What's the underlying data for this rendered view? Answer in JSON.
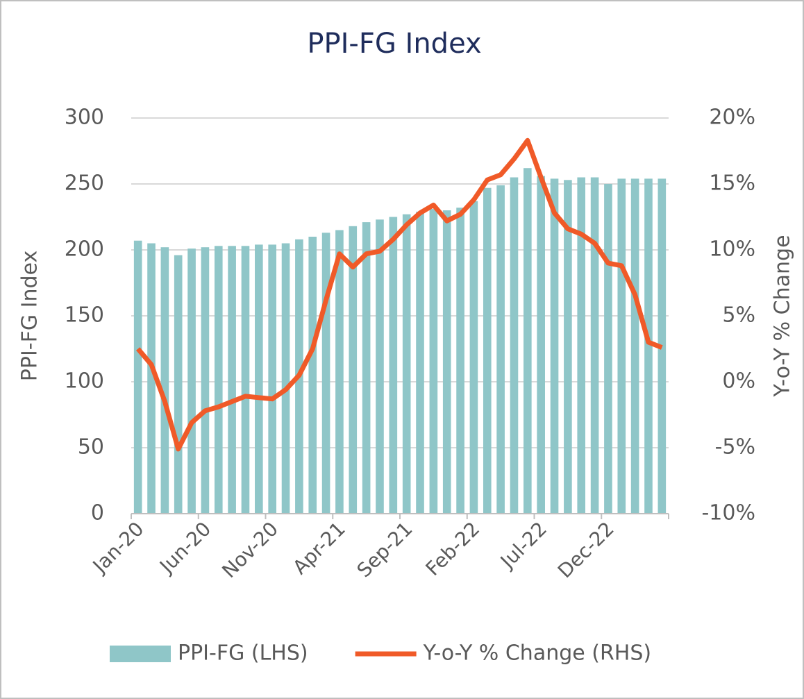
{
  "chart_data": {
    "type": "bar",
    "title": "PPI-FG Index",
    "y_label": "PPI-FG Index",
    "y2_label": "Y-o-Y % Change",
    "categories": [
      "Jan-20",
      null,
      null,
      null,
      null,
      "Jun-20",
      null,
      null,
      null,
      null,
      "Nov-20",
      null,
      null,
      null,
      null,
      "Apr-21",
      null,
      null,
      null,
      null,
      "Sep-21",
      null,
      null,
      null,
      null,
      "Feb-22",
      null,
      null,
      null,
      null,
      "Jul-22",
      null,
      null,
      null,
      null,
      "Dec-22",
      null,
      null,
      null,
      null
    ],
    "series": [
      {
        "name": "PPI-FG (LHS)",
        "type": "bar",
        "color": "#8fc6c8",
        "values": [
          207,
          205,
          202,
          196,
          201,
          202,
          203,
          203,
          203,
          204,
          204,
          205,
          208,
          210,
          213,
          215,
          218,
          221,
          223,
          225,
          227,
          229,
          231,
          230,
          232,
          237,
          247,
          249,
          255,
          262,
          256,
          254,
          253,
          255,
          255,
          250,
          254,
          254,
          254,
          254
        ]
      },
      {
        "name": "Y-o-Y % Change (RHS)",
        "type": "line",
        "axis": "y2",
        "color": "#f05a28",
        "values": [
          2.5,
          1.3,
          -1.5,
          -5.1,
          -3.1,
          -2.2,
          -1.9,
          -1.5,
          -1.1,
          -1.2,
          -1.3,
          -0.6,
          0.5,
          2.5,
          6.2,
          9.7,
          8.7,
          9.7,
          9.9,
          10.8,
          11.9,
          12.8,
          13.4,
          12.2,
          12.7,
          13.8,
          15.3,
          15.7,
          16.9,
          18.3,
          15.5,
          12.8,
          11.6,
          11.2,
          10.5,
          9.0,
          8.8,
          6.6,
          3.0,
          2.6
        ]
      }
    ],
    "ylim": [
      0,
      300
    ],
    "yticks": [
      0,
      50,
      100,
      150,
      200,
      250,
      300
    ],
    "y2lim": [
      -10,
      20
    ],
    "y2ticks": [
      {
        "value": -10,
        "label": "-10%"
      },
      {
        "value": -5,
        "label": "-5%"
      },
      {
        "value": 0,
        "label": "0%"
      },
      {
        "value": 5,
        "label": "5%"
      },
      {
        "value": 10,
        "label": "10%"
      },
      {
        "value": 15,
        "label": "15%"
      },
      {
        "value": 20,
        "label": "20%"
      }
    ],
    "grid": true,
    "legend": "bottom"
  }
}
